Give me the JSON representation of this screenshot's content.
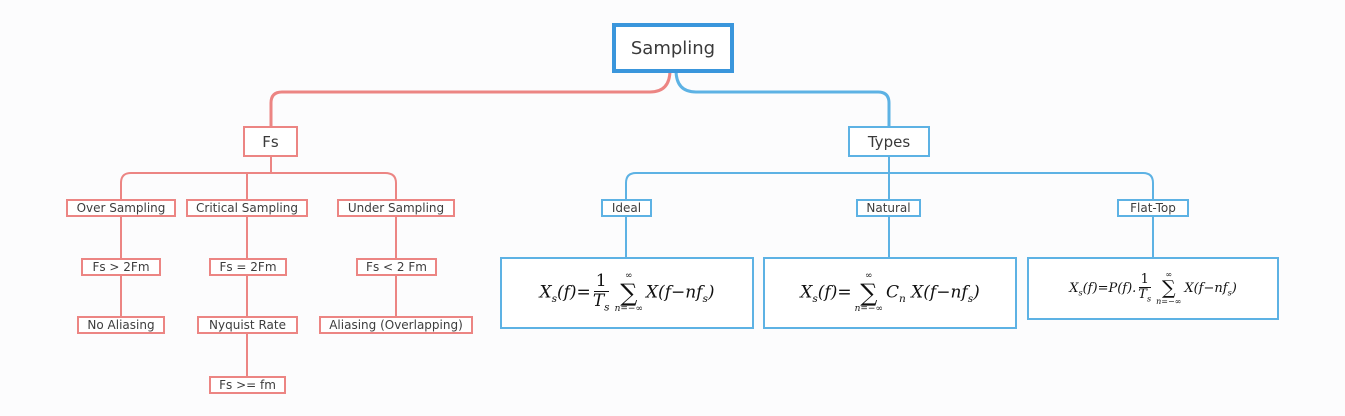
{
  "root": {
    "label": "Sampling"
  },
  "fs": {
    "label": "Fs",
    "over": {
      "label": "Over Sampling",
      "condition": "Fs > 2Fm",
      "result": "No Aliasing"
    },
    "critical": {
      "label": "Critical Sampling",
      "condition": "Fs = 2Fm",
      "result": "Nyquist Rate",
      "extra": "Fs >= fm"
    },
    "under": {
      "label": "Under Sampling",
      "condition": "Fs < 2 Fm",
      "result": "Aliasing (Overlapping)"
    }
  },
  "types": {
    "label": "Types",
    "ideal": {
      "label": "Ideal"
    },
    "natural": {
      "label": "Natural"
    },
    "flattop": {
      "label": "Flat-Top"
    }
  },
  "colors": {
    "root_border": "#3a96dc",
    "red_branch": "#ec8583",
    "blue_branch": "#5db2e4",
    "background": "#fcfcfd"
  }
}
